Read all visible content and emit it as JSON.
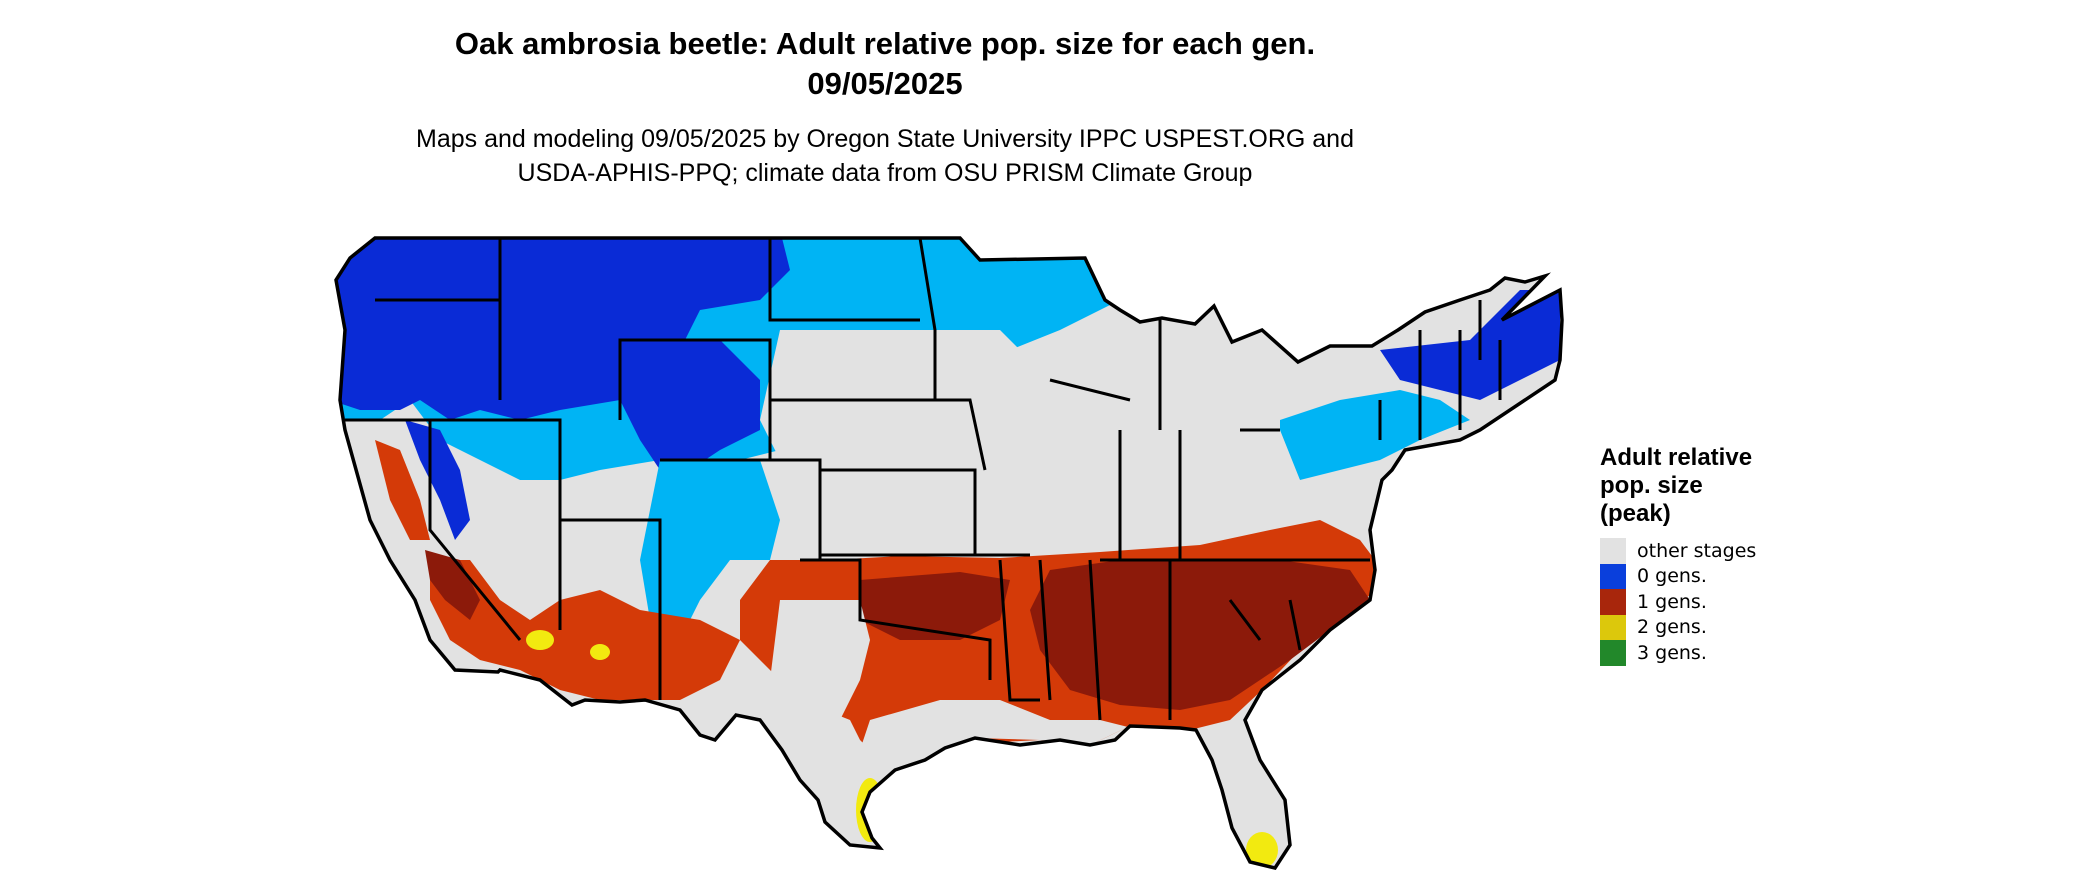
{
  "title": {
    "line1": "Oak ambrosia beetle: Adult relative pop. size for each gen.",
    "line2": "09/05/2025"
  },
  "subtitle": {
    "line1": "Maps and modeling 09/05/2025 by Oregon State University IPPC USPEST.ORG and",
    "line2": "USDA-APHIS-PPQ; climate data from OSU PRISM Climate Group"
  },
  "legend": {
    "title_lines": [
      "Adult relative",
      "pop. size",
      "(peak)"
    ],
    "items": [
      {
        "label": "other stages",
        "color": "#e2e2e2"
      },
      {
        "label": "0 gens.",
        "color": "#0a3fdc"
      },
      {
        "label": "1 gens.",
        "color": "#a8260c"
      },
      {
        "label": "2 gens.",
        "color": "#dcc80c"
      },
      {
        "label": "3 gens.",
        "color": "#22882a"
      }
    ]
  },
  "map": {
    "colors": {
      "background": "#e2e2e2",
      "cold_dark": "#0a2bd6",
      "cold_light": "#00b4f4",
      "warm": "#d43a08",
      "warm_dark": "#8c1a0a",
      "hot_yellow": "#f2ea10",
      "border": "#000000"
    }
  }
}
